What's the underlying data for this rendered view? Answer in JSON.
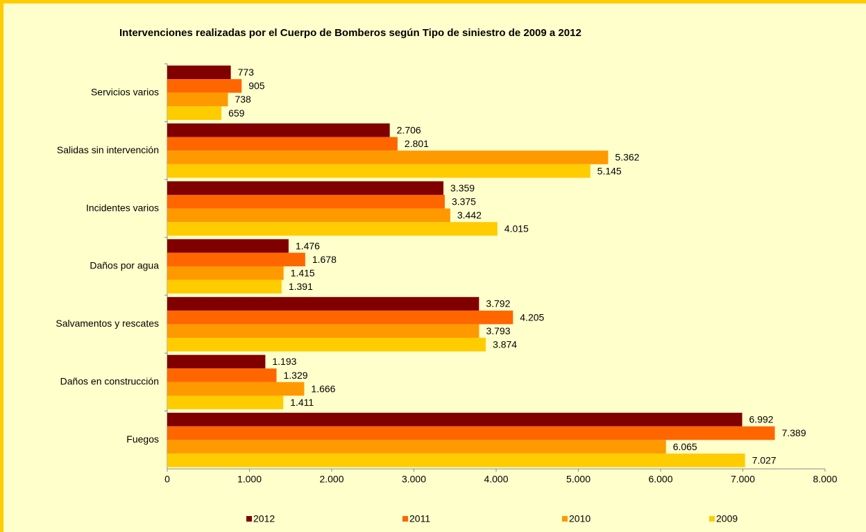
{
  "chart_data": {
    "type": "hbar",
    "title": "Intervenciones realizadas por el Cuerpo de Bomberos según Tipo de siniestro de 2009 a 2012",
    "categories": [
      "Servicios varios",
      "Salidas sin intervención",
      "Incidentes varios",
      "Daños por agua",
      "Salvamentos y rescates",
      "Daños en construcción",
      "Fuegos"
    ],
    "series": [
      {
        "name": "2012",
        "color": "#800000",
        "values": [
          773,
          2706,
          3359,
          1476,
          3792,
          1193,
          6992
        ],
        "value_labels": [
          "773",
          "2.706",
          "3.359",
          "1.476",
          "3.792",
          "1.193",
          "6.992"
        ]
      },
      {
        "name": "2011",
        "color": "#ff6600",
        "values": [
          905,
          2801,
          3375,
          1678,
          4205,
          1329,
          7389
        ],
        "value_labels": [
          "905",
          "2.801",
          "3.375",
          "1.678",
          "4.205",
          "1.329",
          "7.389"
        ]
      },
      {
        "name": "2010",
        "color": "#ff9900",
        "values": [
          738,
          5362,
          3442,
          1415,
          3793,
          1666,
          6065
        ],
        "value_labels": [
          "738",
          "5.362",
          "3.442",
          "1.415",
          "3.793",
          "1.666",
          "6.065"
        ]
      },
      {
        "name": "2009",
        "color": "#ffcc00",
        "values": [
          659,
          5145,
          4015,
          1391,
          3874,
          1411,
          7027
        ],
        "value_labels": [
          "659",
          "5.145",
          "4.015",
          "1.391",
          "3.874",
          "1.411",
          "7.027"
        ]
      }
    ],
    "xlim": [
      0,
      8000
    ],
    "xticks": [
      0,
      {
        "value": 1000,
        "label": "1.000"
      },
      {
        "value": 2000,
        "label": "2.000"
      },
      {
        "value": 3000,
        "label": "3.000"
      },
      {
        "value": 4000,
        "label": "4.000"
      },
      {
        "value": 5000,
        "label": "5.000"
      },
      {
        "value": 6000,
        "label": "6.000"
      },
      {
        "value": 7000,
        "label": "7.000"
      },
      {
        "value": 8000,
        "label": "8.000"
      }
    ],
    "legend": "bottom"
  }
}
